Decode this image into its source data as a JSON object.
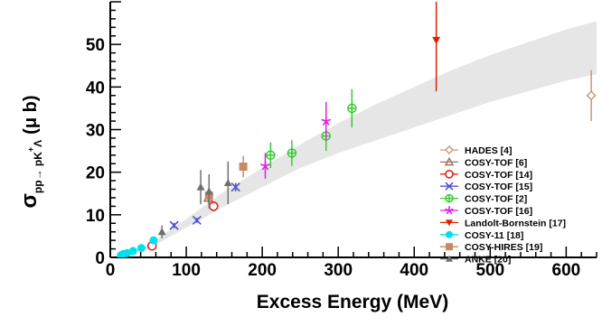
{
  "chart_data": {
    "type": "scatter",
    "xlabel": "Excess Energy (MeV)",
    "ylabel": {
      "symbol": "σ",
      "subscript": "pp→ pK",
      "superscript": "+",
      "subscript_tail": "Λ",
      "unit": "(μ b)"
    },
    "xlim": [
      0,
      640
    ],
    "ylim": [
      0,
      60
    ],
    "x_ticks": [
      0,
      100,
      200,
      300,
      400,
      500,
      600
    ],
    "y_ticks": [
      0,
      10,
      20,
      30,
      40,
      50
    ],
    "band": {
      "description": "grey theoretical uncertainty band",
      "color": "#e6e6e6",
      "x": [
        0,
        50,
        100,
        150,
        200,
        250,
        300,
        350,
        400,
        450,
        500,
        550,
        600,
        640
      ],
      "upper": [
        0,
        3,
        9,
        15.5,
        21,
        26.5,
        31.5,
        36,
        40,
        44,
        47.5,
        50.5,
        53.5,
        55.5
      ],
      "lower": [
        0,
        2,
        7,
        12,
        16.5,
        21,
        24.5,
        27.5,
        30.5,
        33.5,
        36.5,
        39,
        41.5,
        43
      ]
    },
    "series": [
      {
        "name": "HADES [4]",
        "marker": "open-diamond",
        "color": "#c89b7b",
        "points": [
          {
            "x": 633,
            "y": 38,
            "err": 6
          }
        ]
      },
      {
        "name": "COSY-TOF [6]",
        "marker": "open-triangle",
        "color": "#a07060",
        "points": [
          {
            "x": 129,
            "y": 14,
            "err": 1.2
          }
        ]
      },
      {
        "name": "COSY-TOF [14]",
        "marker": "open-circle",
        "color": "#e02020",
        "points": [
          {
            "x": 55,
            "y": 2.7,
            "err": 0.4
          },
          {
            "x": 136,
            "y": 12,
            "err": 0.8
          }
        ]
      },
      {
        "name": "COSY-TOF [15]",
        "marker": "cross",
        "color": "#5050d0",
        "points": [
          {
            "x": 84,
            "y": 7.5,
            "err": 0.6
          },
          {
            "x": 114,
            "y": 8.7,
            "err": 0.6
          },
          {
            "x": 165,
            "y": 16.5,
            "err": 1
          }
        ]
      },
      {
        "name": "COSY-TOF [2]",
        "marker": "open-cross-circle",
        "color": "#33cc33",
        "points": [
          {
            "x": 211,
            "y": 24,
            "err": 3
          },
          {
            "x": 239,
            "y": 24.5,
            "err": 3
          },
          {
            "x": 284,
            "y": 28.5,
            "err": 3.5
          },
          {
            "x": 318,
            "y": 35,
            "err": 4.5
          }
        ]
      },
      {
        "name": "COSY-TOF [16]",
        "marker": "star",
        "color": "#e020e0",
        "points": [
          {
            "x": 204,
            "y": 21.5,
            "err": 3
          },
          {
            "x": 284,
            "y": 32,
            "err": 4.5
          }
        ]
      },
      {
        "name": "Landolt-Bornstein [17]",
        "marker": "filled-down-triangle",
        "color": "#e02000",
        "points": [
          {
            "x": 429,
            "y": 51,
            "err_up": 9,
            "err_down": 12
          }
        ]
      },
      {
        "name": "COSY-11 [18]",
        "marker": "filled-circle",
        "color": "#00e0ee",
        "points": [
          {
            "x": 14,
            "y": 0.5,
            "err": 0.1
          },
          {
            "x": 17,
            "y": 0.8,
            "err": 0.1
          },
          {
            "x": 22,
            "y": 1.0,
            "err": 0.1
          },
          {
            "x": 30,
            "y": 1.5,
            "err": 0.1
          },
          {
            "x": 41,
            "y": 2.2,
            "err": 0.2
          },
          {
            "x": 57,
            "y": 4.0,
            "err": 0.3
          }
        ]
      },
      {
        "name": "COSY-HIRES [19]",
        "marker": "filled-square",
        "color": "#c88a60",
        "points": [
          {
            "x": 130,
            "y": 14.5,
            "err": 2
          },
          {
            "x": 175,
            "y": 21.3,
            "err": 2.5
          }
        ]
      },
      {
        "name": "ANKE [20]",
        "marker": "filled-triangle",
        "color": "#707070",
        "points": [
          {
            "x": 68,
            "y": 6,
            "err": 1.5
          },
          {
            "x": 119,
            "y": 16.5,
            "err": 4
          },
          {
            "x": 130,
            "y": 15.5,
            "err": 4
          },
          {
            "x": 155,
            "y": 17.5,
            "err": 5
          }
        ]
      }
    ],
    "legend_placement": "bottom-right",
    "grid": false
  }
}
